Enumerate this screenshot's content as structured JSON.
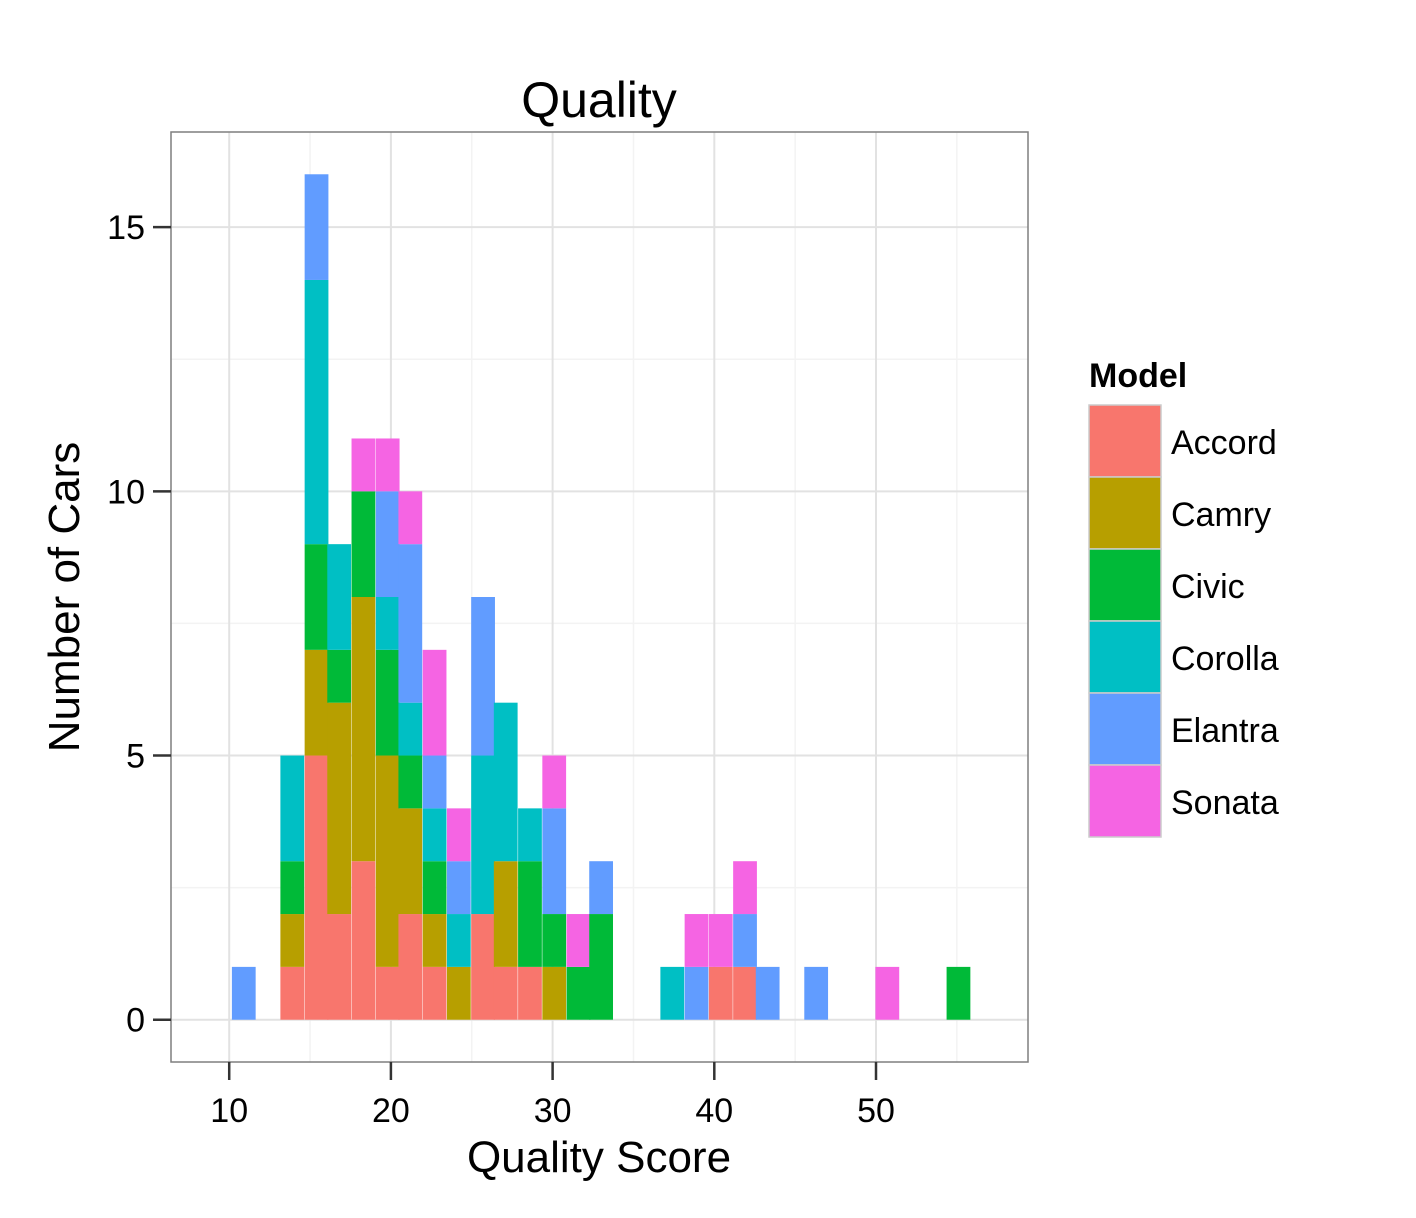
{
  "chart_data": {
    "type": "bar",
    "stacked": true,
    "title": "Quality",
    "xlabel": "Quality Score",
    "ylabel": "Number of Cars",
    "xlim": [
      6.4,
      59.4
    ],
    "ylim": [
      -0.8,
      16.8
    ],
    "xticks": [
      10,
      20,
      30,
      40,
      50
    ],
    "yticks": [
      0,
      5,
      10,
      15
    ],
    "bin_width": 1.47,
    "grid": true,
    "legend": {
      "title": "Model",
      "position": "right",
      "entries": [
        "Accord",
        "Camry",
        "Civic",
        "Corolla",
        "Elantra",
        "Sonata"
      ]
    },
    "colors": {
      "Accord": "#F8766D",
      "Camry": "#B79F00",
      "Civic": "#00BA38",
      "Corolla": "#00BFC4",
      "Elantra": "#619CFF",
      "Sonata": "#F564E3"
    },
    "bin_centers": [
      10.9,
      12.4,
      13.9,
      15.4,
      16.8,
      18.3,
      19.8,
      21.2,
      22.7,
      24.2,
      25.7,
      27.1,
      28.6,
      30.1,
      31.6,
      33.0,
      34.5,
      36.0,
      37.4,
      38.9,
      40.4,
      41.9,
      43.3,
      44.8,
      46.3,
      47.7,
      49.2,
      50.7,
      52.2,
      53.6,
      55.1
    ],
    "series": [
      {
        "name": "Accord",
        "values": [
          0,
          0,
          1,
          5,
          2,
          3,
          1,
          2,
          1,
          0,
          2,
          1,
          1,
          0,
          0,
          0,
          0,
          0,
          0,
          0,
          1,
          1,
          0,
          0,
          0,
          0,
          0,
          0,
          0,
          0,
          0
        ]
      },
      {
        "name": "Camry",
        "values": [
          0,
          0,
          1,
          2,
          4,
          5,
          4,
          2,
          1,
          1,
          0,
          2,
          0,
          1,
          0,
          0,
          0,
          0,
          0,
          0,
          0,
          0,
          0,
          0,
          0,
          0,
          0,
          0,
          0,
          0,
          0
        ]
      },
      {
        "name": "Civic",
        "values": [
          0,
          0,
          1,
          2,
          1,
          2,
          2,
          1,
          1,
          0,
          0,
          0,
          2,
          1,
          1,
          2,
          0,
          0,
          0,
          0,
          0,
          0,
          0,
          0,
          0,
          0,
          0,
          0,
          0,
          0,
          1
        ]
      },
      {
        "name": "Corolla",
        "values": [
          0,
          0,
          2,
          5,
          2,
          0,
          1,
          1,
          1,
          1,
          3,
          3,
          1,
          0,
          0,
          0,
          0,
          0,
          1,
          0,
          0,
          0,
          0,
          0,
          0,
          0,
          0,
          0,
          0,
          0,
          0
        ]
      },
      {
        "name": "Elantra",
        "values": [
          1,
          0,
          0,
          2,
          0,
          0,
          2,
          3,
          1,
          1,
          3,
          0,
          0,
          2,
          0,
          1,
          0,
          0,
          0,
          1,
          0,
          1,
          1,
          0,
          1,
          0,
          0,
          0,
          0,
          0,
          0
        ]
      },
      {
        "name": "Sonata",
        "values": [
          0,
          0,
          0,
          0,
          0,
          1,
          1,
          1,
          2,
          1,
          0,
          0,
          0,
          1,
          1,
          0,
          0,
          0,
          0,
          1,
          1,
          1,
          0,
          0,
          0,
          0,
          0,
          1,
          0,
          0,
          0
        ]
      }
    ]
  }
}
